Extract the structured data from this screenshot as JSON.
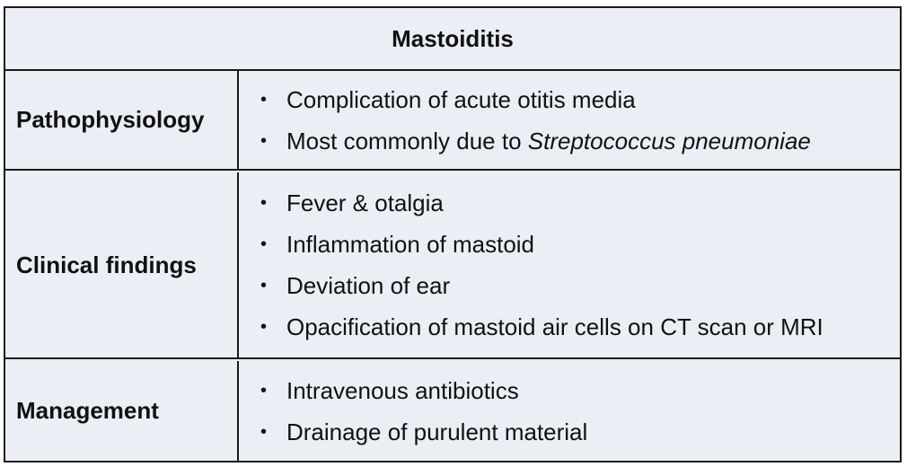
{
  "table": {
    "title": "Mastoiditis",
    "rows": [
      {
        "label": "Pathophysiology",
        "items": [
          {
            "text": "Complication of acute otitis media"
          },
          {
            "prefix": "Most commonly due to ",
            "italic": "Streptococcus pneumoniae"
          }
        ]
      },
      {
        "label": "Clinical findings",
        "items": [
          {
            "text": "Fever & otalgia"
          },
          {
            "text": "Inflammation of mastoid"
          },
          {
            "text": "Deviation of ear"
          },
          {
            "text": "Opacification of mastoid air cells on CT scan or MRI"
          }
        ]
      },
      {
        "label": "Management",
        "items": [
          {
            "text": "Intravenous antibiotics"
          },
          {
            "text": "Drainage of purulent material"
          }
        ]
      }
    ],
    "bullet": "•"
  }
}
